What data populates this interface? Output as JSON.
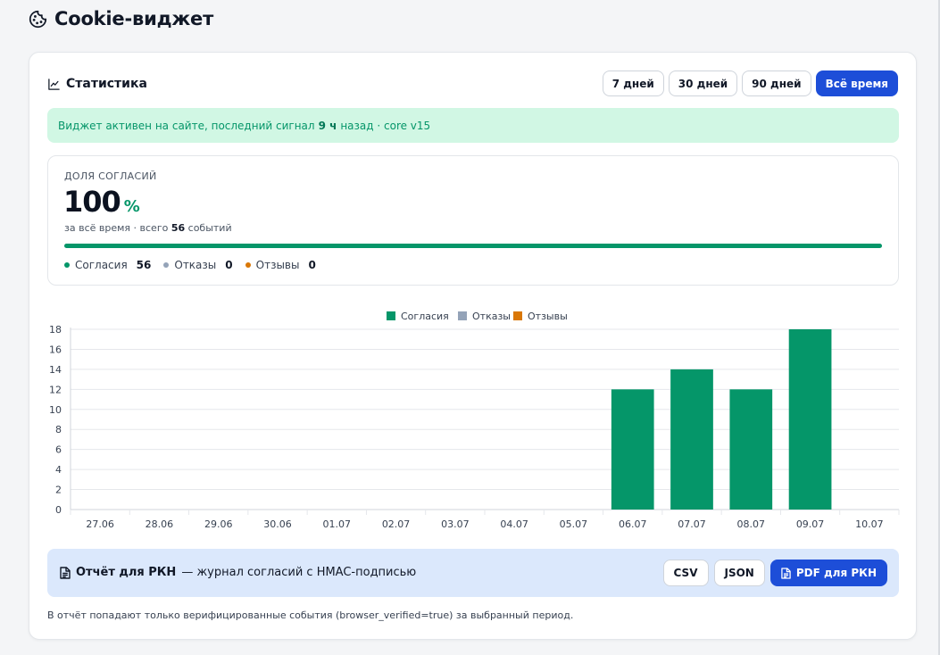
{
  "header": {
    "title": "Cookie-виджет",
    "icon": "cookie-icon"
  },
  "stats_card": {
    "title": "Статистика",
    "icon": "line-chart-icon",
    "periods": [
      {
        "label": "7 дней",
        "active": false
      },
      {
        "label": "30 дней",
        "active": false
      },
      {
        "label": "90 дней",
        "active": false
      },
      {
        "label": "Всё время",
        "active": true
      }
    ],
    "status": {
      "text_before": "Виджет активен на сайте, последний сигнал",
      "highlight": "9 ч",
      "text_after": "назад · core v15"
    },
    "consent": {
      "label": "ДОЛЯ СОГЛАСИЙ",
      "value": "100",
      "unit": "%",
      "sub_prefix": "за всё время · всего",
      "total": "56",
      "sub_suffix": "событий",
      "progress": 1.0,
      "legend": [
        {
          "label": "Согласия",
          "count": "56",
          "color": "#059669"
        },
        {
          "label": "Отказы",
          "count": "0",
          "color": "#94a3b8"
        },
        {
          "label": "Отзывы",
          "count": "0",
          "color": "#d97706"
        }
      ]
    }
  },
  "chart_data": {
    "type": "bar",
    "categories": [
      "27.06",
      "28.06",
      "29.06",
      "30.06",
      "01.07",
      "02.07",
      "03.07",
      "04.07",
      "05.07",
      "06.07",
      "07.07",
      "08.07",
      "09.07",
      "10.07"
    ],
    "series": [
      {
        "name": "Согласия",
        "color": "#059669",
        "values": [
          0,
          0,
          0,
          0,
          0,
          0,
          0,
          0,
          0,
          12,
          14,
          12,
          18,
          0
        ]
      },
      {
        "name": "Отказы",
        "color": "#94a3b8",
        "values": [
          0,
          0,
          0,
          0,
          0,
          0,
          0,
          0,
          0,
          0,
          0,
          0,
          0,
          0
        ]
      },
      {
        "name": "Отзывы",
        "color": "#d97706",
        "values": [
          0,
          0,
          0,
          0,
          0,
          0,
          0,
          0,
          0,
          0,
          0,
          0,
          0,
          0
        ]
      }
    ],
    "yticks": [
      "0",
      "2",
      "4",
      "6",
      "8",
      "10",
      "12",
      "14",
      "16",
      "18"
    ],
    "ylim": [
      0,
      18
    ],
    "stacked": true,
    "grid": true,
    "legend_position": "top-center"
  },
  "report": {
    "title": "Отчёт для РКН",
    "description": "— журнал согласий с HMAC-подписью",
    "icon": "document-icon",
    "buttons": {
      "csv": "CSV",
      "json": "JSON",
      "pdf": "PDF для РКН"
    },
    "footnote": "В отчёт попадают только верифицированные события (browser_verified=true) за выбранный период."
  }
}
